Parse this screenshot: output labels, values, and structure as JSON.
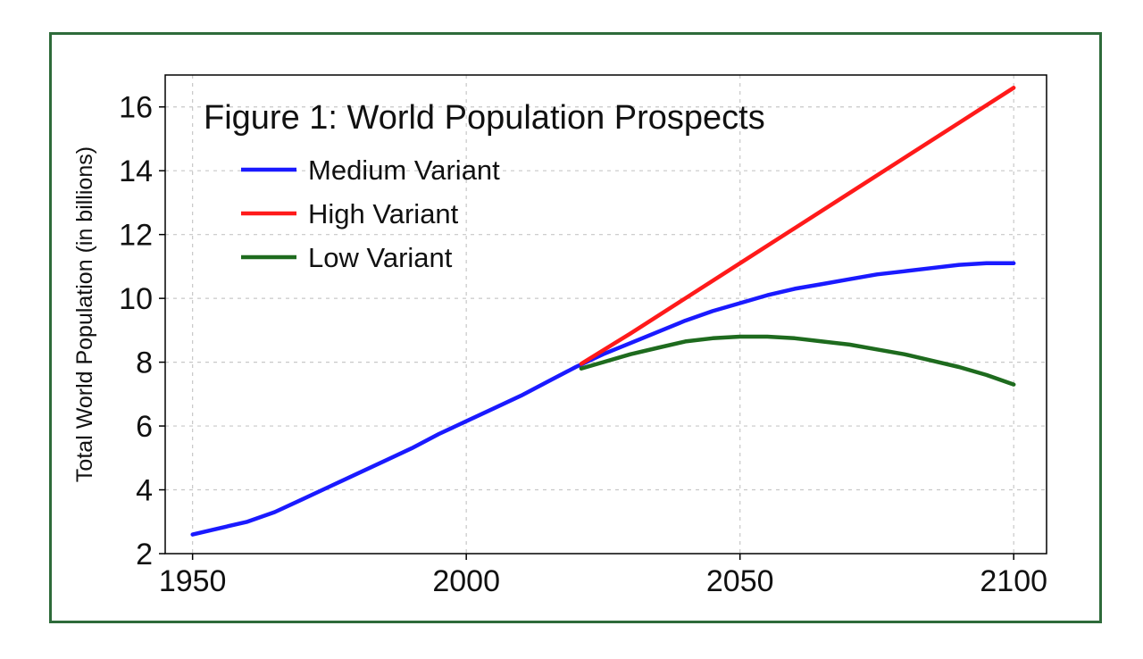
{
  "chart_data": {
    "type": "line",
    "title": "Figure 1: World Population Prospects",
    "xlabel": "",
    "ylabel": "Total World Population (in billions)",
    "xlim": [
      1945,
      2106
    ],
    "ylim": [
      2,
      17
    ],
    "x_ticks": [
      1950,
      2000,
      2050,
      2100
    ],
    "y_ticks": [
      2,
      4,
      6,
      8,
      10,
      12,
      14,
      16
    ],
    "grid": true,
    "legend_position": "top-left",
    "series": [
      {
        "name": "Medium Variant",
        "color": "#1a1aff",
        "points": [
          [
            1950,
            2.6
          ],
          [
            1955,
            2.8
          ],
          [
            1960,
            3.0
          ],
          [
            1965,
            3.3
          ],
          [
            1970,
            3.7
          ],
          [
            1975,
            4.1
          ],
          [
            1980,
            4.5
          ],
          [
            1985,
            4.9
          ],
          [
            1990,
            5.3
          ],
          [
            1995,
            5.75
          ],
          [
            2000,
            6.15
          ],
          [
            2005,
            6.55
          ],
          [
            2010,
            6.95
          ],
          [
            2015,
            7.4
          ],
          [
            2020,
            7.85
          ],
          [
            2025,
            8.25
          ],
          [
            2030,
            8.6
          ],
          [
            2035,
            8.95
          ],
          [
            2040,
            9.3
          ],
          [
            2045,
            9.6
          ],
          [
            2050,
            9.85
          ],
          [
            2055,
            10.1
          ],
          [
            2060,
            10.3
          ],
          [
            2065,
            10.45
          ],
          [
            2070,
            10.6
          ],
          [
            2075,
            10.75
          ],
          [
            2080,
            10.85
          ],
          [
            2085,
            10.95
          ],
          [
            2090,
            11.05
          ],
          [
            2095,
            11.1
          ],
          [
            2100,
            11.1
          ]
        ]
      },
      {
        "name": "High Variant",
        "color": "#ff1a1a",
        "points": [
          [
            2021,
            7.95
          ],
          [
            2030,
            8.9
          ],
          [
            2040,
            10.0
          ],
          [
            2050,
            11.1
          ],
          [
            2060,
            12.2
          ],
          [
            2070,
            13.3
          ],
          [
            2080,
            14.4
          ],
          [
            2090,
            15.5
          ],
          [
            2100,
            16.6
          ]
        ]
      },
      {
        "name": "Low Variant",
        "color": "#1e6b1e",
        "points": [
          [
            2021,
            7.8
          ],
          [
            2025,
            8.0
          ],
          [
            2030,
            8.25
          ],
          [
            2035,
            8.45
          ],
          [
            2040,
            8.65
          ],
          [
            2045,
            8.75
          ],
          [
            2050,
            8.8
          ],
          [
            2055,
            8.8
          ],
          [
            2060,
            8.75
          ],
          [
            2065,
            8.65
          ],
          [
            2070,
            8.55
          ],
          [
            2075,
            8.4
          ],
          [
            2080,
            8.25
          ],
          [
            2085,
            8.05
          ],
          [
            2090,
            7.85
          ],
          [
            2095,
            7.6
          ],
          [
            2100,
            7.3
          ]
        ]
      }
    ]
  }
}
